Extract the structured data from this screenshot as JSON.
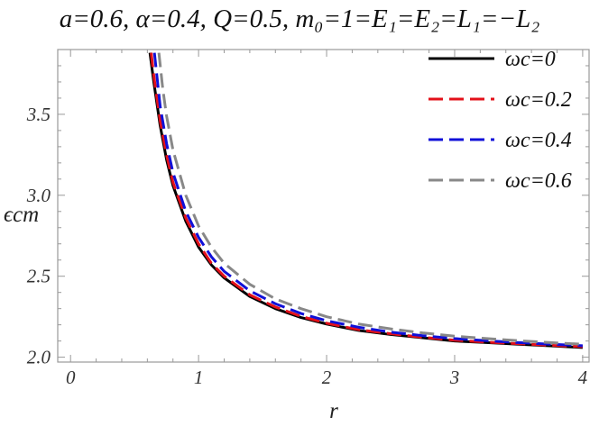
{
  "chart_data": {
    "type": "line",
    "title": "a=0.6, α=0.4, Q=0.5, m₀=1=E₁=E₂=L₁=−L₂",
    "xlabel": "r",
    "ylabel": "ϵcm",
    "xlim": [
      -0.1,
      4.05
    ],
    "ylim": [
      1.97,
      3.9
    ],
    "x_ticks": [
      0,
      1,
      2,
      3,
      4
    ],
    "y_ticks": [
      2.0,
      2.5,
      3.0,
      3.5
    ],
    "x_tick_labels": [
      "0",
      "1",
      "2",
      "3",
      "4"
    ],
    "y_tick_labels": [
      "2.0",
      "2.5",
      "3.0",
      "3.5"
    ],
    "grid": false,
    "legend_position": "top-right",
    "series": [
      {
        "name": "ωc=0",
        "color": "#000000",
        "dash": "solid",
        "x": [
          0.62,
          0.65,
          0.7,
          0.75,
          0.8,
          0.9,
          1.0,
          1.1,
          1.2,
          1.4,
          1.6,
          1.8,
          2.0,
          2.25,
          2.5,
          2.75,
          3.0,
          3.25,
          3.5,
          3.75,
          4.0
        ],
        "y": [
          3.88,
          3.7,
          3.43,
          3.22,
          3.06,
          2.84,
          2.68,
          2.57,
          2.49,
          2.375,
          2.3,
          2.245,
          2.205,
          2.165,
          2.14,
          2.12,
          2.1,
          2.09,
          2.08,
          2.07,
          2.06
        ]
      },
      {
        "name": "ωc=0.2",
        "color": "#e3101a",
        "dash": "dashed",
        "x": [
          0.63,
          0.65,
          0.7,
          0.75,
          0.8,
          0.9,
          1.0,
          1.1,
          1.2,
          1.4,
          1.6,
          1.8,
          2.0,
          2.25,
          2.5,
          2.75,
          3.0,
          3.25,
          3.5,
          3.75,
          4.0
        ],
        "y": [
          3.88,
          3.74,
          3.46,
          3.25,
          3.08,
          2.86,
          2.7,
          2.58,
          2.5,
          2.385,
          2.31,
          2.252,
          2.21,
          2.17,
          2.145,
          2.123,
          2.105,
          2.093,
          2.083,
          2.073,
          2.065
        ]
      },
      {
        "name": "ωc=0.4",
        "color": "#1010d8",
        "dash": "dashed",
        "x": [
          0.655,
          0.7,
          0.75,
          0.8,
          0.9,
          1.0,
          1.1,
          1.2,
          1.4,
          1.6,
          1.8,
          2.0,
          2.25,
          2.5,
          2.75,
          3.0,
          3.25,
          3.5,
          3.75,
          4.0
        ],
        "y": [
          3.88,
          3.55,
          3.32,
          3.14,
          2.9,
          2.74,
          2.62,
          2.53,
          2.41,
          2.33,
          2.27,
          2.225,
          2.185,
          2.155,
          2.133,
          2.115,
          2.102,
          2.09,
          2.08,
          2.071
        ]
      },
      {
        "name": "ωc=0.6",
        "color": "#888888",
        "dash": "dashed",
        "x": [
          0.69,
          0.72,
          0.75,
          0.8,
          0.9,
          1.0,
          1.1,
          1.2,
          1.4,
          1.6,
          1.8,
          2.0,
          2.25,
          2.5,
          2.75,
          3.0,
          3.25,
          3.5,
          3.75,
          4.0
        ],
        "y": [
          3.88,
          3.66,
          3.49,
          3.28,
          3.0,
          2.81,
          2.68,
          2.58,
          2.45,
          2.36,
          2.3,
          2.25,
          2.205,
          2.175,
          2.15,
          2.13,
          2.115,
          2.102,
          2.09,
          2.08
        ]
      }
    ]
  }
}
